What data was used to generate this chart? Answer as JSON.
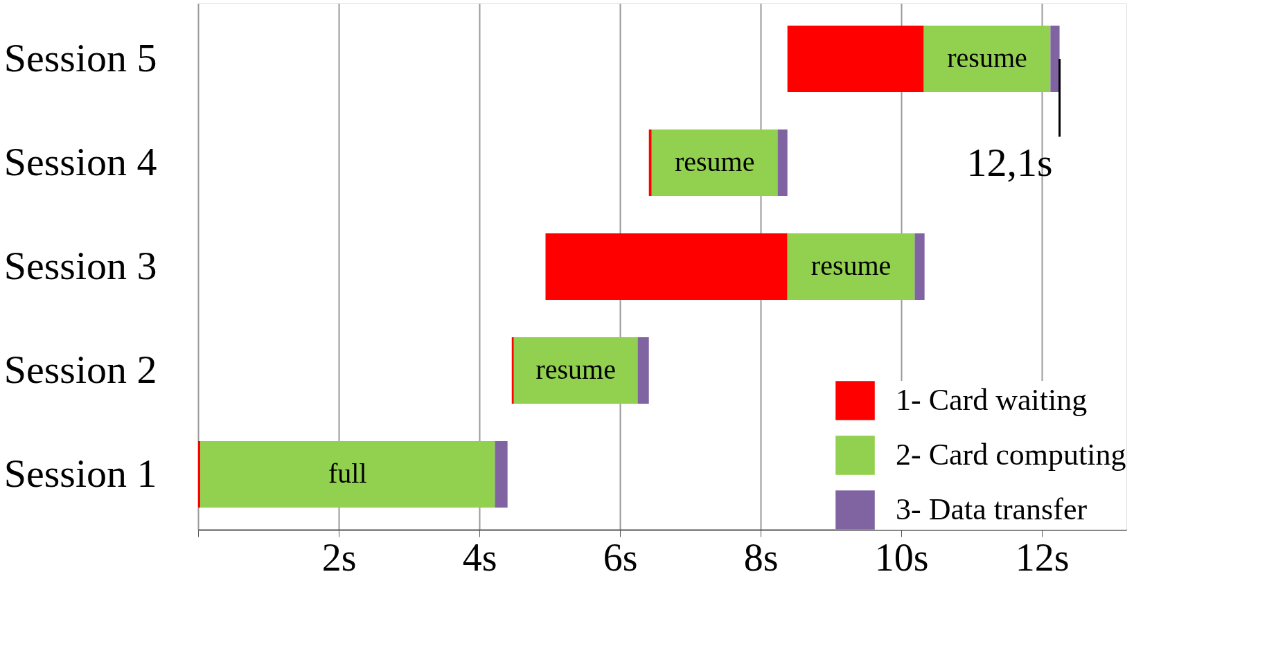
{
  "chart_data": {
    "type": "bar",
    "orientation": "horizontal",
    "categories": [
      "Session 5",
      "Session 4",
      "Session 3",
      "Session 2",
      "Session 1"
    ],
    "series": [
      {
        "name": "1- Card waiting",
        "color": "#ff0000",
        "base": [
          8.38,
          6.41,
          4.94,
          4.46,
          0
        ],
        "values": [
          1.94,
          0.04,
          3.44,
          0.03,
          0.03
        ]
      },
      {
        "name": "2- Card computing",
        "color": "#92d050",
        "base": [
          10.32,
          6.45,
          8.38,
          4.49,
          0.03
        ],
        "values": [
          1.8,
          1.79,
          1.81,
          1.76,
          4.19
        ]
      },
      {
        "name": "3- Data transfer",
        "color": "#8064a2",
        "base": [
          12.12,
          8.24,
          10.19,
          6.25,
          4.22
        ],
        "values": [
          0.13,
          0.14,
          0.14,
          0.16,
          0.18
        ]
      }
    ],
    "xlim": [
      0,
      13.2
    ],
    "xticks": [
      {
        "value": 0,
        "label": null
      },
      {
        "value": 2,
        "label": "2s"
      },
      {
        "value": 4,
        "label": "4s"
      },
      {
        "value": 6,
        "label": "6s"
      },
      {
        "value": 8,
        "label": "8s"
      },
      {
        "value": 10,
        "label": "10s"
      },
      {
        "value": 12,
        "label": "12s"
      }
    ],
    "grid": "x",
    "legend": "bottom right",
    "annotations": [
      "resume",
      "resume",
      "resume",
      "resume",
      "full",
      {
        "text": "12,1s",
        "x": 12.25,
        "y": "Session 5"
      }
    ]
  }
}
